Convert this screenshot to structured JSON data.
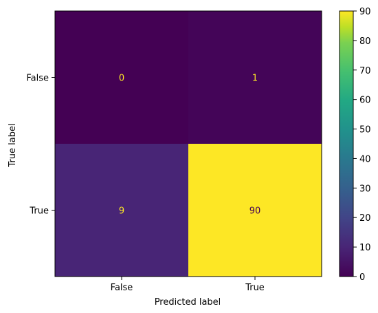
{
  "chart_data": {
    "type": "heatmap",
    "title": "",
    "xlabel": "Predicted label",
    "ylabel": "True label",
    "x_categories": [
      "False",
      "True"
    ],
    "y_categories": [
      "False",
      "True"
    ],
    "matrix": [
      [
        0,
        1
      ],
      [
        9,
        90
      ]
    ],
    "colormap": "viridis",
    "colorbar": {
      "min": 0,
      "max": 90,
      "ticks": [
        0,
        10,
        20,
        30,
        40,
        50,
        60,
        70,
        80,
        90
      ]
    },
    "colors": {
      "low": "#440154",
      "high": "#fde725",
      "text_on_dark": "#fde725",
      "text_on_light": "#440154"
    }
  }
}
